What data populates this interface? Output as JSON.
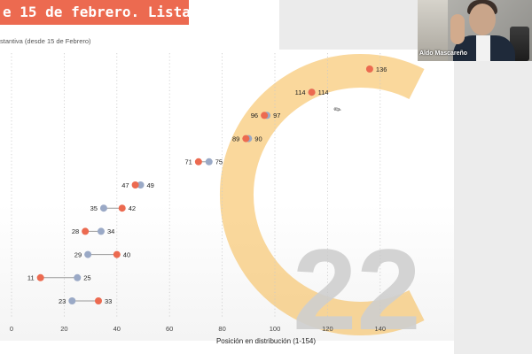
{
  "slide": {
    "title": "e 15 de febrero. Listas",
    "subtitle": "stantiva (desde 15 de Febrero)",
    "logo_text": "22"
  },
  "webcam": {
    "name": "Aldo Mascareño"
  },
  "colors": {
    "red": "#ec6a50",
    "blue": "#9aa9c6",
    "title_bar": "#ec6a50",
    "logo_orange": "#f5b84a",
    "logo_gray": "#d6d6d6"
  },
  "chart_data": {
    "type": "scatter",
    "subtype": "dumbbell",
    "xlabel": "Posición en distribución (1-154)",
    "xlim": [
      -4,
      166
    ],
    "xticks": [
      0,
      20,
      40,
      60,
      80,
      100,
      120,
      140
    ],
    "grid": "vertical dotted",
    "rows": [
      {
        "red": 136,
        "blue": null,
        "labels": [
          "136"
        ]
      },
      {
        "red": 114,
        "blue": 114,
        "labels": [
          "114",
          "114"
        ]
      },
      {
        "red": 96,
        "blue": 97,
        "labels": [
          "96",
          "97"
        ]
      },
      {
        "red": 89,
        "blue": 90,
        "labels": [
          "89",
          "90"
        ]
      },
      {
        "red": 71,
        "blue": 75,
        "labels": [
          "71",
          "75"
        ]
      },
      {
        "red": 47,
        "blue": 49,
        "labels": [
          "47",
          "49"
        ]
      },
      {
        "red": 42,
        "blue": 35,
        "labels": [
          "35",
          "42"
        ]
      },
      {
        "red": 28,
        "blue": 34,
        "labels": [
          "28",
          "34"
        ]
      },
      {
        "red": 40,
        "blue": 29,
        "labels": [
          "29",
          "40"
        ]
      },
      {
        "red": 11,
        "blue": 25,
        "labels": [
          "11",
          "25"
        ]
      },
      {
        "red": 33,
        "blue": 23,
        "labels": [
          "23",
          "33"
        ]
      }
    ]
  }
}
